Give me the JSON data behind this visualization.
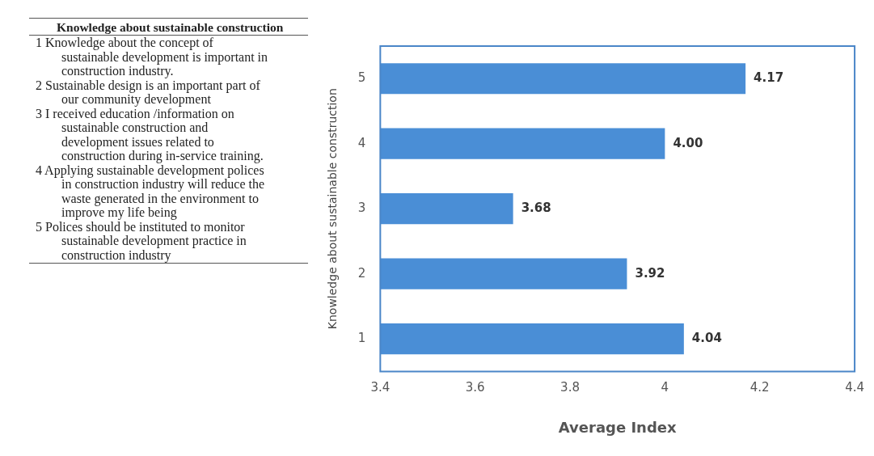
{
  "chart_data": [
    {
      "type": "other",
      "title": "Knowledge about sustainable construction",
      "annotations": [
        "1 Knowledge about the concept of sustainable development is important in construction industry.",
        "2 Sustainable design is an important  part of our community development",
        "3 I received education /information on sustainable construction and development issues related to construction during in-service training.",
        "4 Applying sustainable development polices in construction industry will reduce the waste generated in the environment to improve my life being",
        "5 Polices should be instituted to monitor  sustainable development  practice in construction industry"
      ]
    },
    {
      "type": "bar",
      "orientation": "horizontal",
      "categories": [
        "5",
        "4",
        "3",
        "2",
        "1"
      ],
      "values": [
        4.17,
        4.0,
        3.68,
        3.92,
        4.04
      ],
      "value_labels": [
        "4.17",
        "4.00",
        "3.68",
        "3.92",
        "4.04"
      ],
      "color": "#4a8ed6",
      "xlim": [
        3.4,
        4.4
      ],
      "xticks": [
        3.4,
        3.6,
        3.8,
        4,
        4.2,
        4.4
      ],
      "grid": false,
      "xlabel": "Average Index",
      "ylabel": "Knowledge about sustainable construction"
    }
  ]
}
